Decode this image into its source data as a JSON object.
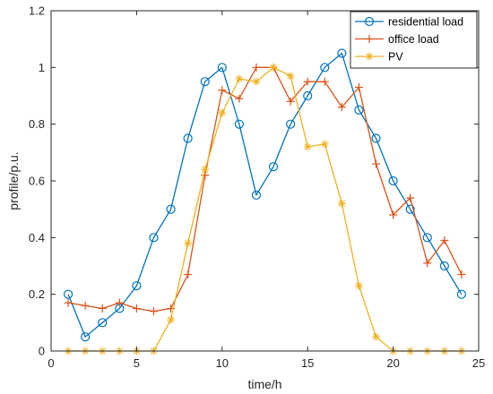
{
  "chart_data": {
    "type": "line",
    "title": "",
    "xlabel": "time/h",
    "ylabel": "profile/p.u.",
    "xlim": [
      0,
      25
    ],
    "ylim": [
      0,
      1.2
    ],
    "xticks": [
      0,
      5,
      10,
      15,
      20,
      25
    ],
    "yticks": [
      0,
      0.2,
      0.4,
      0.6,
      0.8,
      1,
      1.2
    ],
    "xtick_labels": [
      "0",
      "5",
      "10",
      "15",
      "20",
      "25"
    ],
    "ytick_labels": [
      "0",
      "0.2",
      "0.4",
      "0.6",
      "0.8",
      "1",
      "1.2"
    ],
    "grid": false,
    "legend_position": "top-right",
    "x": [
      1,
      2,
      3,
      4,
      5,
      6,
      7,
      8,
      9,
      10,
      11,
      12,
      13,
      14,
      15,
      16,
      17,
      18,
      19,
      20,
      21,
      22,
      23,
      24
    ],
    "series": [
      {
        "name": "residential load",
        "color": "#0072BD",
        "marker": "circle",
        "values": [
          0.2,
          0.05,
          0.1,
          0.15,
          0.23,
          0.4,
          0.5,
          0.75,
          0.95,
          1.0,
          0.8,
          0.55,
          0.65,
          0.8,
          0.9,
          1.0,
          1.05,
          0.85,
          0.75,
          0.6,
          0.5,
          0.4,
          0.3,
          0.2
        ]
      },
      {
        "name": "office load",
        "color": "#D95319",
        "marker": "plus",
        "values": [
          0.17,
          0.16,
          0.15,
          0.17,
          0.15,
          0.14,
          0.15,
          0.27,
          0.62,
          0.92,
          0.89,
          1.0,
          1.0,
          0.88,
          0.95,
          0.95,
          0.86,
          0.93,
          0.66,
          0.48,
          0.54,
          0.31,
          0.39,
          0.27
        ]
      },
      {
        "name": "PV",
        "color": "#EDB120",
        "marker": "asterisk",
        "values": [
          0,
          0,
          0,
          0,
          0,
          0,
          0.11,
          0.38,
          0.64,
          0.84,
          0.96,
          0.95,
          1.0,
          0.97,
          0.72,
          0.73,
          0.52,
          0.23,
          0.05,
          0,
          0,
          0,
          0,
          0
        ]
      }
    ]
  }
}
